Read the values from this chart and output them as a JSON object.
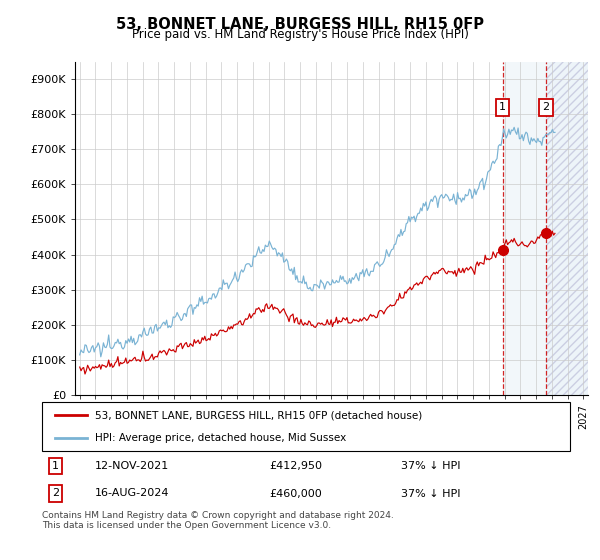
{
  "title": "53, BONNET LANE, BURGESS HILL, RH15 0FP",
  "subtitle": "Price paid vs. HM Land Registry's House Price Index (HPI)",
  "ylabel_ticks": [
    "£0",
    "£100K",
    "£200K",
    "£300K",
    "£400K",
    "£500K",
    "£600K",
    "£700K",
    "£800K",
    "£900K"
  ],
  "ytick_values": [
    0,
    100000,
    200000,
    300000,
    400000,
    500000,
    600000,
    700000,
    800000,
    900000
  ],
  "ylim": [
    0,
    950000
  ],
  "legend_line1": "53, BONNET LANE, BURGESS HILL, RH15 0FP (detached house)",
  "legend_line2": "HPI: Average price, detached house, Mid Sussex",
  "transaction1_label": "1",
  "transaction1_date": "12-NOV-2021",
  "transaction1_price": "£412,950",
  "transaction1_hpi": "37% ↓ HPI",
  "transaction2_label": "2",
  "transaction2_date": "16-AUG-2024",
  "transaction2_price": "£460,000",
  "transaction2_hpi": "37% ↓ HPI",
  "footer": "Contains HM Land Registry data © Crown copyright and database right 2024.\nThis data is licensed under the Open Government Licence v3.0.",
  "hpi_color": "#7ab3d4",
  "price_color": "#cc0000",
  "background_color": "#ffffff",
  "grid_color": "#cccccc",
  "t1_year": 2021.875,
  "t1_price": 412950,
  "t2_year": 2024.625,
  "t2_price": 460000,
  "xlim_left": 1994.7,
  "xlim_right": 2027.3
}
